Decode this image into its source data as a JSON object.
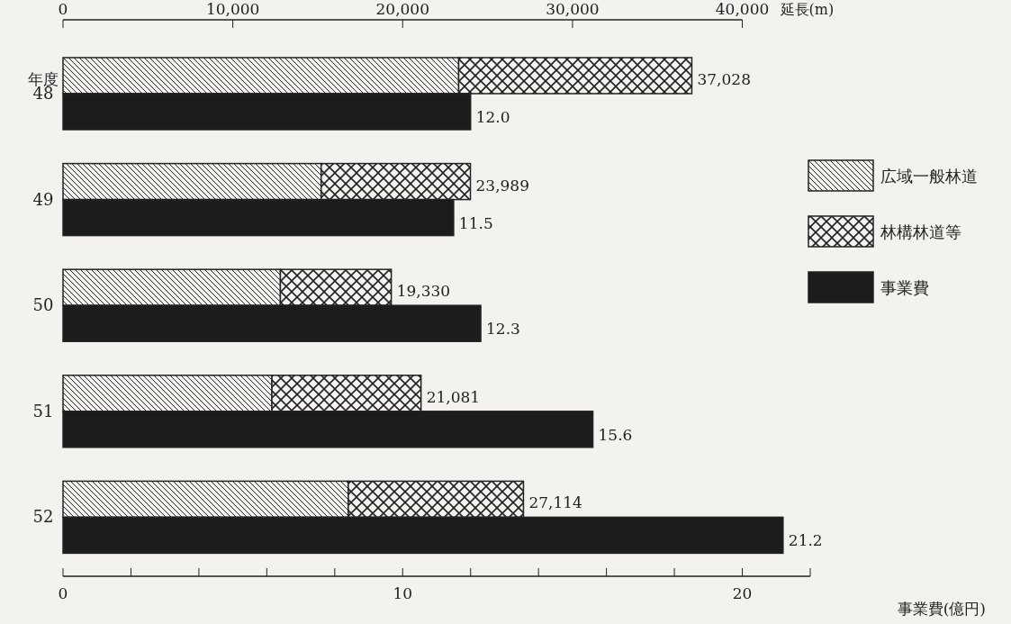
{
  "chart_data": [
    {
      "type": "bar",
      "orientation": "horizontal",
      "stacked": true,
      "categories": [
        "48",
        "49",
        "50",
        "51",
        "52"
      ],
      "ylabel": "年度",
      "xlabel": "延長(m)",
      "xlim": [
        0,
        40000
      ],
      "xticks": [
        0,
        {
          "value": 10000,
          "label": "10,000"
        },
        {
          "value": 20000,
          "label": "20,000"
        },
        {
          "value": 30000,
          "label": "30,000"
        },
        {
          "value": 40000,
          "label": "40,000"
        }
      ],
      "series": [
        {
          "name": "広域一般林道",
          "color": "#222222",
          "values": [
            23300,
            15200,
            12800,
            12300,
            16800
          ]
        },
        {
          "name": "林構林道等",
          "color": "#222222",
          "values": [
            13728,
            8789,
            6530,
            8781,
            10314
          ]
        }
      ],
      "totals": [
        "37,028",
        "23,989",
        "19,330",
        "21,081",
        "27,114"
      ],
      "legend": "right"
    },
    {
      "type": "bar",
      "orientation": "horizontal",
      "categories": [
        null,
        null,
        null,
        null,
        null
      ],
      "xlabel": "事業費(億円)",
      "xlim": [
        0,
        22
      ],
      "xticks": [
        0,
        {
          "value": 2,
          "label": null
        },
        {
          "value": 4,
          "label": null
        },
        {
          "value": 6,
          "label": null
        },
        {
          "value": 8,
          "label": null
        },
        10,
        {
          "value": 12,
          "label": null
        },
        {
          "value": 14,
          "label": null
        },
        {
          "value": 16,
          "label": null
        },
        {
          "value": 18,
          "label": null
        },
        20,
        {
          "value": 22,
          "label": null
        }
      ],
      "series": [
        {
          "name": "事業費",
          "color": "#1c1c1c",
          "values": [
            12.0,
            11.5,
            12.3,
            15.6,
            21.2
          ],
          "value_labels": [
            "12.0",
            "11.5",
            "12.3",
            "15.6",
            "21.2"
          ]
        }
      ],
      "legend": "right"
    }
  ]
}
